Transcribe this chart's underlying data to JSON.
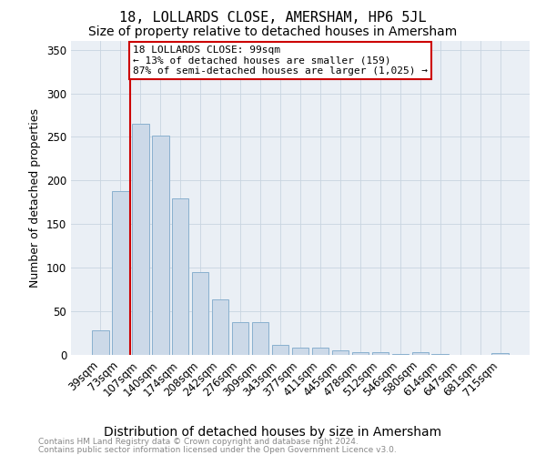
{
  "title": "18, LOLLARDS CLOSE, AMERSHAM, HP6 5JL",
  "subtitle": "Size of property relative to detached houses in Amersham",
  "xlabel": "Distribution of detached houses by size in Amersham",
  "ylabel": "Number of detached properties",
  "footnote1": "Contains HM Land Registry data © Crown copyright and database right 2024.",
  "footnote2": "Contains public sector information licensed under the Open Government Licence v3.0.",
  "categories": [
    "39sqm",
    "73sqm",
    "107sqm",
    "140sqm",
    "174sqm",
    "208sqm",
    "242sqm",
    "276sqm",
    "309sqm",
    "343sqm",
    "377sqm",
    "411sqm",
    "445sqm",
    "478sqm",
    "512sqm",
    "546sqm",
    "580sqm",
    "614sqm",
    "647sqm",
    "681sqm",
    "715sqm"
  ],
  "values": [
    28,
    188,
    265,
    252,
    179,
    95,
    64,
    38,
    38,
    12,
    8,
    8,
    5,
    3,
    3,
    1,
    3,
    1,
    0,
    0,
    2
  ],
  "bar_color": "#ccd9e8",
  "bar_edge_color": "#89b0cf",
  "vline_x": 1.5,
  "vline_color": "#cc0000",
  "annotation_text": "18 LOLLARDS CLOSE: 99sqm\n← 13% of detached houses are smaller (159)\n87% of semi-detached houses are larger (1,025) →",
  "annotation_box_color": "#cc0000",
  "annotation_bg_color": "#ffffff",
  "ylim": [
    0,
    360
  ],
  "yticks": [
    0,
    50,
    100,
    150,
    200,
    250,
    300,
    350
  ],
  "title_fontsize": 11,
  "subtitle_fontsize": 10,
  "xlabel_fontsize": 10,
  "ylabel_fontsize": 9,
  "tick_fontsize": 8.5,
  "annot_fontsize": 8,
  "background_color": "#ffffff",
  "ax_background_color": "#eaeff5",
  "grid_color": "#c8d4e0"
}
